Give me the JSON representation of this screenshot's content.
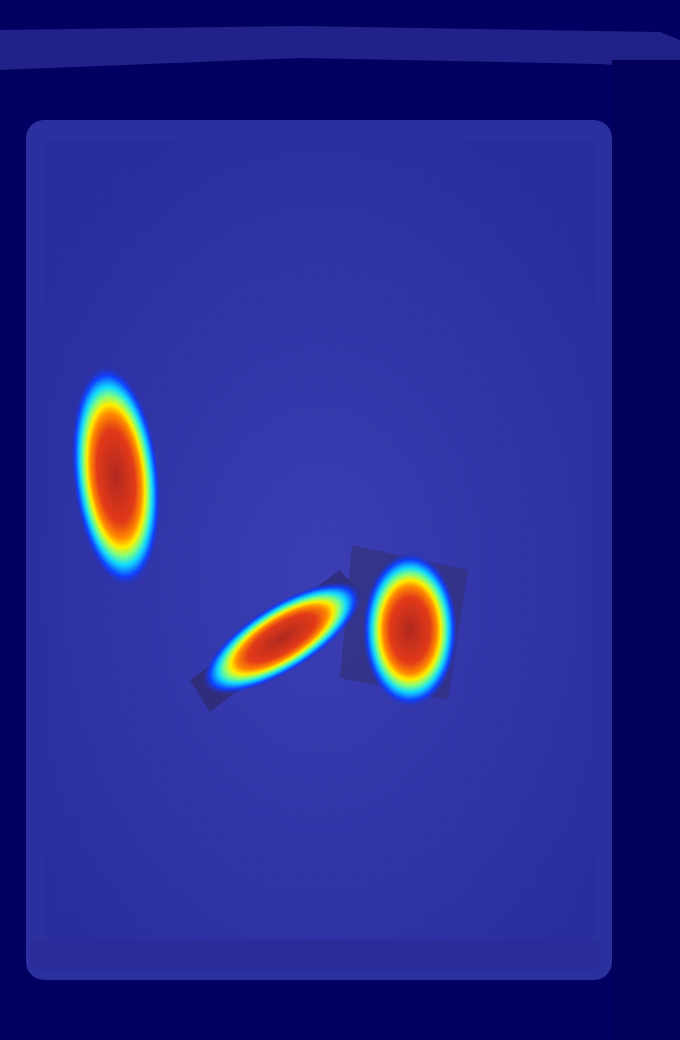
{
  "image": {
    "kind": "heatmap-overlay",
    "colormap": "jet",
    "background_color": "#020060",
    "tray_color": "#2a2ea6",
    "hotspot_count": 3,
    "colors": {
      "low": "#0000ff",
      "mid_low": "#00c8ff",
      "mid": "#7fff7f",
      "mid_high": "#ffff00",
      "high": "#ff2a00",
      "peak": "#c42a1e"
    }
  }
}
